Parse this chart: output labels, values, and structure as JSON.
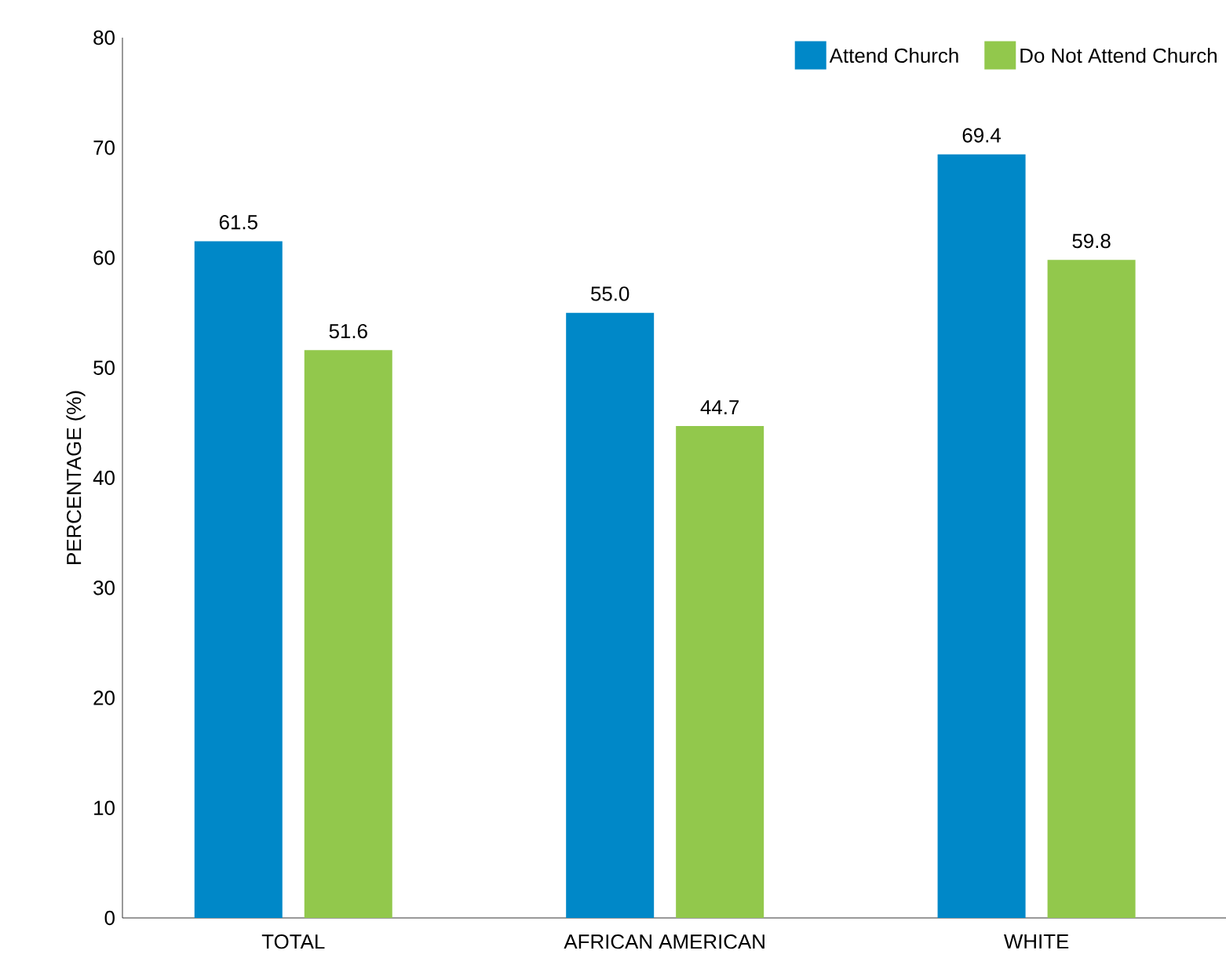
{
  "chart_data": {
    "type": "bar",
    "ylabel": "PERCENTAGE (%)",
    "categories": [
      "TOTAL",
      "AFRICAN AMERICAN",
      "WHITE"
    ],
    "series": [
      {
        "name": "Attend Church",
        "color": "#0088c8",
        "values": [
          61.5,
          55.0,
          69.4
        ],
        "value_labels": [
          "61.5",
          "55.0",
          "69.4"
        ]
      },
      {
        "name": "Do Not Attend Church",
        "color": "#92c84c",
        "values": [
          51.6,
          44.7,
          59.8
        ],
        "value_labels": [
          "51.6",
          "44.7",
          "59.8"
        ]
      }
    ],
    "ylim": [
      0,
      80
    ],
    "yticks": [
      0,
      10,
      20,
      30,
      40,
      50,
      60,
      70,
      80
    ],
    "grid": false,
    "legend": "top right"
  }
}
